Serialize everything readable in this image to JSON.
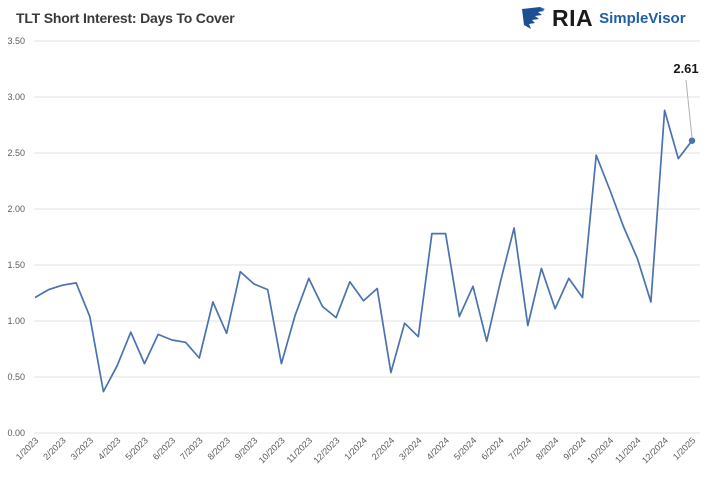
{
  "header": {
    "title": "TLT Short Interest: Days To Cover"
  },
  "logo": {
    "icon": "eagle-shield-icon",
    "brand": "RIA",
    "product": "SimpleVisor",
    "brand_color": "#1a1a1a",
    "product_color": "#1f5fa8"
  },
  "annotation": {
    "label": "2.61"
  },
  "colors": {
    "series": "#4a72b0",
    "grid": "#e2e2e2",
    "text": "#595959"
  },
  "chart_data": {
    "type": "line",
    "title": "TLT Short Interest: Days To Cover",
    "xlabel": "",
    "ylabel": "",
    "ylim": [
      0,
      3.5
    ],
    "yticks": [
      "0.00",
      "0.50",
      "1.00",
      "1.50",
      "2.00",
      "2.50",
      "3.00",
      "3.50"
    ],
    "xtick_labels": [
      "1/2023",
      "2/2023",
      "3/2023",
      "4/2023",
      "5/2023",
      "6/2023",
      "7/2023",
      "8/2023",
      "9/2023",
      "10/2023",
      "11/2023",
      "12/2023",
      "1/2024",
      "2/2024",
      "3/2024",
      "4/2024",
      "5/2024",
      "6/2024",
      "7/2024",
      "8/2024",
      "9/2024",
      "10/2024",
      "11/2024",
      "12/2024",
      "1/2025"
    ],
    "grid": true,
    "legend": "none",
    "series": [
      {
        "name": "TLT Days To Cover",
        "values": [
          1.21,
          1.28,
          1.32,
          1.34,
          1.04,
          0.37,
          0.6,
          0.9,
          0.62,
          0.88,
          0.83,
          0.81,
          0.67,
          1.17,
          0.89,
          1.44,
          1.33,
          1.28,
          0.62,
          1.05,
          1.38,
          1.13,
          1.03,
          1.35,
          1.18,
          1.29,
          0.54,
          0.98,
          0.86,
          1.78,
          1.78,
          1.04,
          1.31,
          0.82,
          1.35,
          1.83,
          0.96,
          1.47,
          1.11,
          1.38,
          1.21,
          2.48,
          2.17,
          1.84,
          1.56,
          1.17,
          2.88,
          2.45,
          2.61
        ]
      }
    ],
    "annotations": [
      {
        "text": "2.61",
        "point": "last"
      }
    ]
  }
}
